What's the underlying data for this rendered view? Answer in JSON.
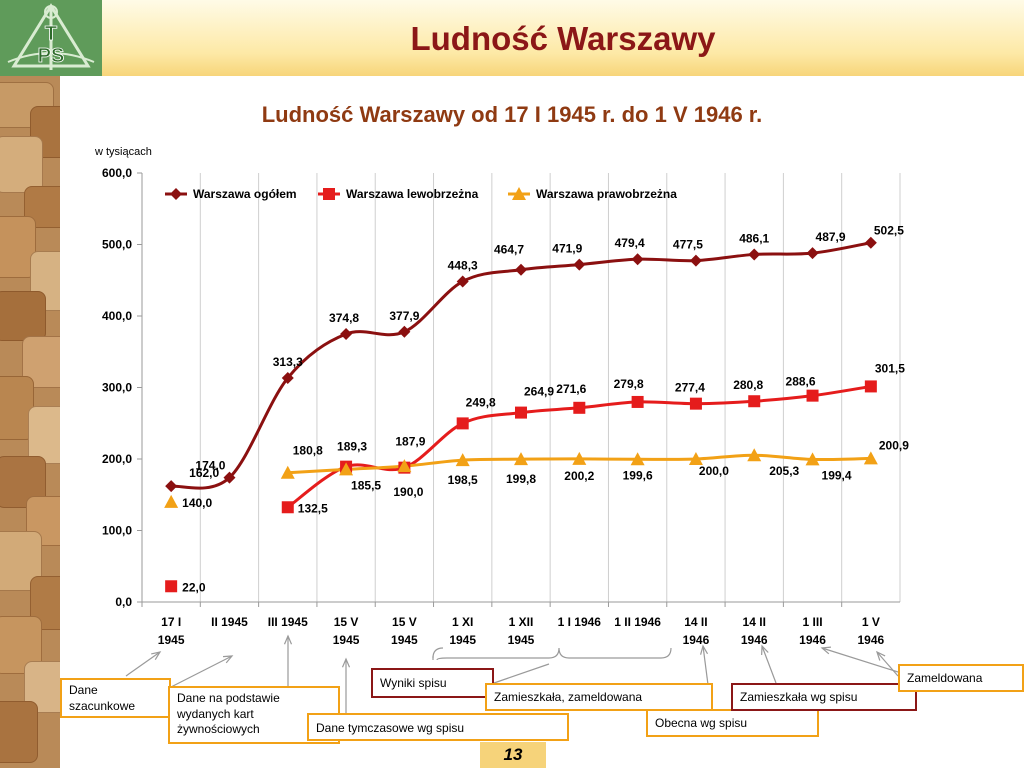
{
  "header": {
    "title": "Ludność Warszawy",
    "logo_text": [
      "T",
      "PS"
    ]
  },
  "chart_data": {
    "type": "line",
    "title": "Ludność Warszawy od 17 I 1945 r. do 1 V 1946 r.",
    "unit_label": "w tysiącach",
    "xlabel": "",
    "ylabel": "",
    "ylim": [
      0,
      600
    ],
    "y_ticks": [
      "0,0",
      "100,0",
      "200,0",
      "300,0",
      "400,0",
      "500,0",
      "600,0"
    ],
    "grid": "vertical",
    "legend_position": "top-left",
    "categories": [
      [
        "17 I",
        "1945"
      ],
      [
        "II 1945"
      ],
      [
        "III 1945"
      ],
      [
        "15 V",
        "1945"
      ],
      [
        "15 V",
        "1945"
      ],
      [
        "1 XI",
        "1945"
      ],
      [
        "1 XII",
        "1945"
      ],
      [
        "1 I 1946"
      ],
      [
        "1 II 1946"
      ],
      [
        "14 II",
        "1946"
      ],
      [
        "14 II",
        "1946"
      ],
      [
        "1 III",
        "1946"
      ],
      [
        "1 V",
        "1946"
      ]
    ],
    "series": [
      {
        "name": "Warszawa ogółem",
        "color": "#8b1010",
        "marker": "diamond",
        "values": [
          162.0,
          174.0,
          313.3,
          374.8,
          377.9,
          448.3,
          464.7,
          471.9,
          479.4,
          477.5,
          486.1,
          487.9,
          502.5
        ],
        "labels": [
          "162,0",
          "174,0",
          "313,3",
          "374,8",
          "377,9",
          "448,3",
          "464,7",
          "471,9",
          "479,4",
          "477,5",
          "486,1",
          "487,9",
          "502,5"
        ]
      },
      {
        "name": "Warszawa lewobrzeżna",
        "color": "#e51c1c",
        "marker": "square",
        "values": [
          22.0,
          null,
          132.5,
          189.3,
          187.9,
          249.8,
          264.9,
          271.6,
          279.8,
          277.4,
          280.8,
          288.6,
          301.5
        ],
        "labels": [
          "22,0",
          "",
          "132,5",
          "189,3",
          "187,9",
          "249,8",
          "264,9",
          "271,6",
          "279,8",
          "277,4",
          "280,8",
          "288,6",
          "301,5"
        ]
      },
      {
        "name": "Warszawa prawobrzeżna",
        "color": "#f2a116",
        "marker": "triangle",
        "values": [
          140.0,
          null,
          180.8,
          185.5,
          190.0,
          198.5,
          199.8,
          200.2,
          199.6,
          200.0,
          205.3,
          199.4,
          200.9
        ],
        "labels": [
          "140,0",
          "",
          "180,8",
          "185,5",
          "190,0",
          "198,5",
          "199,8",
          "200,2",
          "199,6",
          "200,0",
          "205,3",
          "199,4",
          "200,9"
        ]
      }
    ]
  },
  "notes": {
    "estimated": "Dane szacunkowe",
    "ration_cards": "Dane na podstawie wydanych kart żywnościowych",
    "temporary_census": "Dane tymczasowe wg spisu",
    "census_results": "Wyniki spisu",
    "resident_registered": "Zamieszkała, zameldowana",
    "present": "Obecna wg spisu",
    "resident": "Zamieszkała wg spisu",
    "registered": "Zameldowana"
  },
  "page_number": "13"
}
